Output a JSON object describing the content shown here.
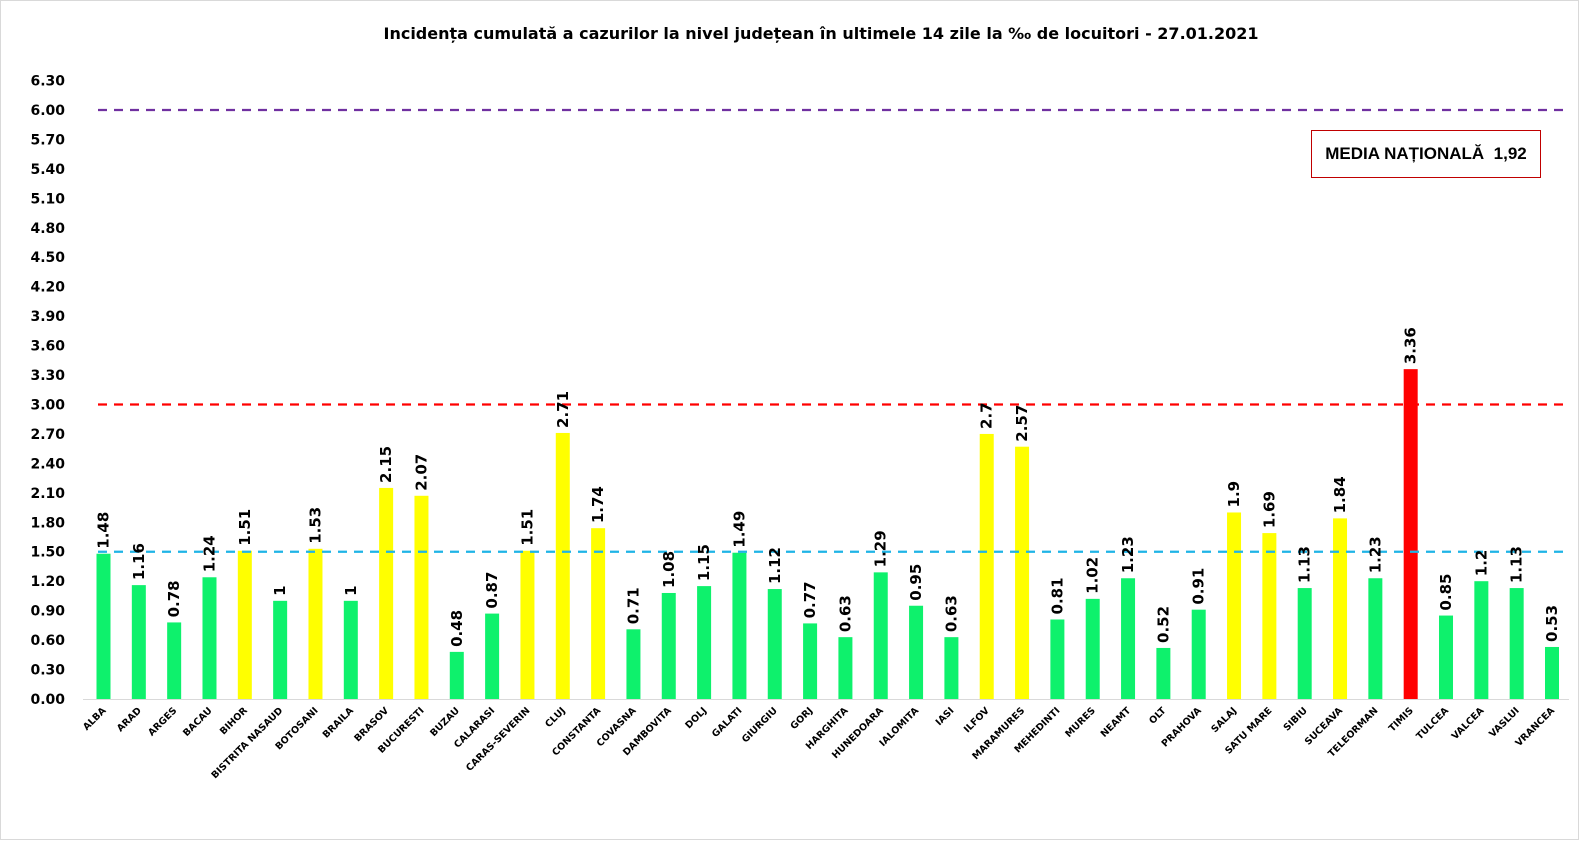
{
  "chart_data": {
    "type": "bar",
    "title": "Incidența cumulată a cazurilor la nivel județean în ultimele 14 zile la ‰ de locuitori - 27.01.2021",
    "xlabel": "",
    "ylabel": "",
    "ylim": [
      0,
      6.3
    ],
    "yticks": [
      "0.00",
      "0.30",
      "0.60",
      "0.90",
      "1.20",
      "1.50",
      "1.80",
      "2.10",
      "2.40",
      "2.70",
      "3.00",
      "3.30",
      "3.60",
      "3.90",
      "4.20",
      "4.50",
      "4.80",
      "5.10",
      "5.40",
      "5.70",
      "6.00",
      "6.30"
    ],
    "grid": false,
    "legend": "none",
    "categories": [
      "ALBA",
      "ARAD",
      "ARGES",
      "BACAU",
      "BIHOR",
      "BISTRITA NASAUD",
      "BOTOSANI",
      "BRAILA",
      "BRASOV",
      "BUCURESTI",
      "BUZAU",
      "CALARASI",
      "CARAS-SEVERIN",
      "CLUJ",
      "CONSTANTA",
      "COVASNA",
      "DAMBOVITA",
      "DOLJ",
      "GALATI",
      "GIURGIU",
      "GORJ",
      "HARGHITA",
      "HUNEDOARA",
      "IALOMITA",
      "IASI",
      "ILFOV",
      "MARAMURES",
      "MEHEDINTI",
      "MURES",
      "NEAMT",
      "OLT",
      "PRAHOVA",
      "SALAJ",
      "SATU MARE",
      "SIBIU",
      "SUCEAVA",
      "TELEORMAN",
      "TIMIS",
      "TULCEA",
      "VALCEA",
      "VASLUI",
      "VRANCEA"
    ],
    "values": [
      1.48,
      1.16,
      0.78,
      1.24,
      1.51,
      1,
      1.53,
      1,
      2.15,
      2.07,
      0.48,
      0.87,
      1.51,
      2.71,
      1.74,
      0.71,
      1.08,
      1.15,
      1.49,
      1.12,
      0.77,
      0.63,
      1.29,
      0.95,
      0.63,
      2.7,
      2.57,
      0.81,
      1.02,
      1.23,
      0.52,
      0.91,
      1.9,
      1.69,
      1.13,
      1.84,
      1.23,
      3.36,
      0.85,
      1.2,
      1.13,
      0.53
    ],
    "data_labels": [
      "1.48",
      "1.16",
      "0.78",
      "1.24",
      "1.51",
      "1",
      "1.53",
      "1",
      "2.15",
      "2.07",
      "0.48",
      "0.87",
      "1.51",
      "2.71",
      "1.74",
      "0.71",
      "1.08",
      "1.15",
      "1.49",
      "1.12",
      "0.77",
      "0.63",
      "1.29",
      "0.95",
      "0.63",
      "2.7",
      "2.57",
      "0.81",
      "1.02",
      "1.23",
      "0.52",
      "0.91",
      "1.9",
      "1.69",
      "1.13",
      "1.84",
      "1.23",
      "3.36",
      "0.85",
      "1.2",
      "1.13",
      "0.53"
    ],
    "color_rules": {
      "green_below": 1.5,
      "yellow_from": 1.5,
      "red_from": 3.0,
      "green": "#0ef16c",
      "yellow": "#ffff00",
      "red": "#ff0000"
    },
    "thresholds": [
      {
        "value": 6.0,
        "color": "#7030a0",
        "style": "dashed"
      },
      {
        "value": 3.0,
        "color": "#ff0000",
        "style": "dashed"
      },
      {
        "value": 1.5,
        "color": "#1fb4e6",
        "style": "dashed"
      }
    ],
    "annotation": {
      "label": "MEDIA NAȚIONALĂ",
      "value": "1,92",
      "border_color": "#c00000",
      "position": "top-right"
    }
  }
}
